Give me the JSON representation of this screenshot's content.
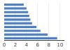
{
  "chart_data": {
    "type": "bar",
    "orientation": "horizontal",
    "categories": [
      null,
      null,
      null,
      null,
      null,
      null,
      null,
      null,
      null,
      null
    ],
    "values": [
      9.5,
      7.8,
      6.5,
      5.8,
      5.0,
      4.7,
      4.5,
      4.3,
      4.0,
      3.5
    ],
    "color": "#4e7fc0",
    "xlim": [
      0,
      10.8
    ],
    "xticks": [
      0,
      2,
      4,
      6,
      8,
      10
    ],
    "grid": true,
    "tick_labels": "x"
  }
}
